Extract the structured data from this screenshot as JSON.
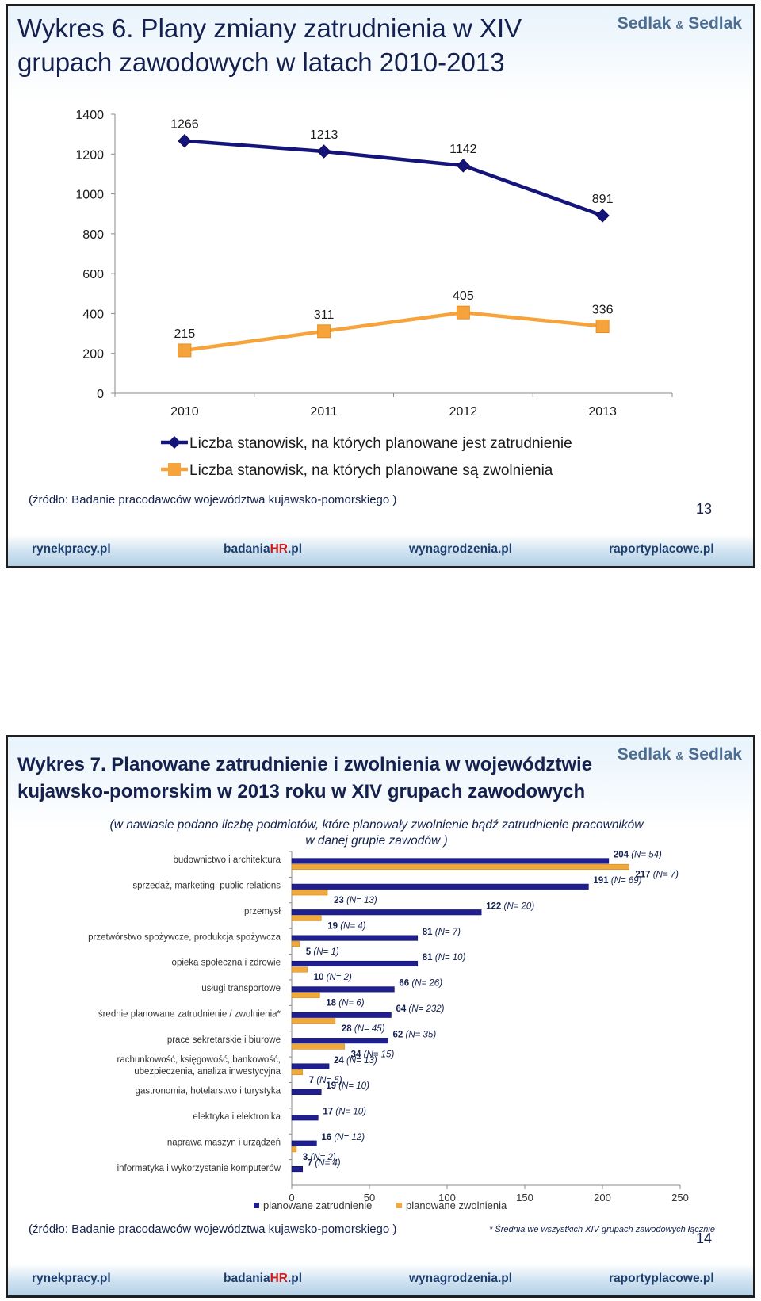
{
  "slide1": {
    "title": "Wykres 6. Plany zmiany zatrudnienia w XIV grupach zawodowych w latach 2010-2013",
    "brand": {
      "name1": "Sedlak",
      "amp": "&",
      "name2": "Sedlak"
    },
    "source": "(źródło: Badanie pracodawców województwa kujawsko-pomorskiego )",
    "page_number": "13"
  },
  "slide2": {
    "title": "Wykres 7. Planowane zatrudnienie i zwolnienia w województwie kujawsko-pomorskim w 2013 roku w XIV grupach zawodowych",
    "subtitle_line1": "(w nawiasie podano liczbę podmiotów, które planowały zwolnienie bądź zatrudnienie pracowników",
    "subtitle_line2": "w danej grupie zawodów )",
    "brand": {
      "name1": "Sedlak",
      "amp": "&",
      "name2": "Sedlak"
    },
    "source": "(źródło: Badanie pracodawców województwa kujawsko-pomorskiego )",
    "footnote": "* Średnia we wszystkich XIV grupach zawodowych łącznie",
    "page_number": "14"
  },
  "footer": {
    "link1": "rynekpracy.pl",
    "link2a": "badania",
    "link2b": "HR",
    "link2c": ".pl",
    "link3": "wynagrodzenia.pl",
    "link4": "raportyplacowe.pl"
  },
  "chart_data": [
    {
      "type": "line",
      "x": [
        "2010",
        "2011",
        "2012",
        "2013"
      ],
      "ylim": [
        0,
        1400
      ],
      "yticks": [
        0,
        200,
        400,
        600,
        800,
        1000,
        1200,
        1400
      ],
      "grid": false,
      "legend": "bottom",
      "series": [
        {
          "name": "Liczba stanowisk, na których planowane jest zatrudnienie",
          "values": [
            1266,
            1213,
            1142,
            891
          ],
          "color": "#14147a",
          "marker": "diamond"
        },
        {
          "name": "Liczba stanowisk, na których planowane są zwolnienia",
          "values": [
            215,
            311,
            405,
            336
          ],
          "color": "#f7a33c",
          "marker": "square"
        }
      ]
    },
    {
      "type": "bar",
      "orientation": "horizontal",
      "xlim": [
        0,
        250
      ],
      "xticks": [
        0,
        50,
        100,
        150,
        200,
        250
      ],
      "grid": false,
      "legend": "bottom",
      "categories": [
        [
          "budownictwo i architektura"
        ],
        [
          "sprzedaż, marketing, public relations"
        ],
        [
          "przemysł"
        ],
        [
          "przetwórstwo spożywcze, produkcja spożywcza"
        ],
        [
          "opieka społeczna i zdrowie"
        ],
        [
          "usługi transportowe"
        ],
        [
          "średnie planowane zatrudnienie / zwolnienia*"
        ],
        [
          "prace sekretarskie i biurowe"
        ],
        [
          "rachunkowość, księgowość, bankowość,",
          "ubezpieczenia, analiza inwestycyjna"
        ],
        [
          "gastronomia, hotelarstwo i turystyka"
        ],
        [
          "elektryka i elektronika"
        ],
        [
          "naprawa maszyn i urządzeń"
        ],
        [
          "informatyka i wykorzystanie komputerów"
        ]
      ],
      "series": [
        {
          "name": "planowane zatrudnienie",
          "color": "#1f1f8f",
          "values": [
            204,
            191,
            122,
            81,
            81,
            66,
            64,
            62,
            24,
            19,
            17,
            16,
            7
          ],
          "n": [
            "(N= 54)",
            "(N= 69)",
            "(N= 20)",
            "(N= 7)",
            "(N= 10)",
            "(N= 26)",
            "(N= 232)",
            "(N= 35)",
            "(N= 13)",
            "(N= 10)",
            "(N= 10)",
            "(N= 12)",
            "(N= 4)"
          ]
        },
        {
          "name": "planowane zwolnienia",
          "color": "#f2a93b",
          "values": [
            217,
            23,
            19,
            5,
            10,
            18,
            28,
            34,
            7,
            null,
            null,
            3,
            null
          ],
          "n": [
            "(N= 7)",
            "(N= 13)",
            "(N= 4)",
            "(N= 1)",
            "(N= 2)",
            "(N= 6)",
            "(N= 45)",
            "(N= 15)",
            "(N= 5)",
            null,
            null,
            "(N= 2)",
            null
          ]
        }
      ]
    }
  ]
}
